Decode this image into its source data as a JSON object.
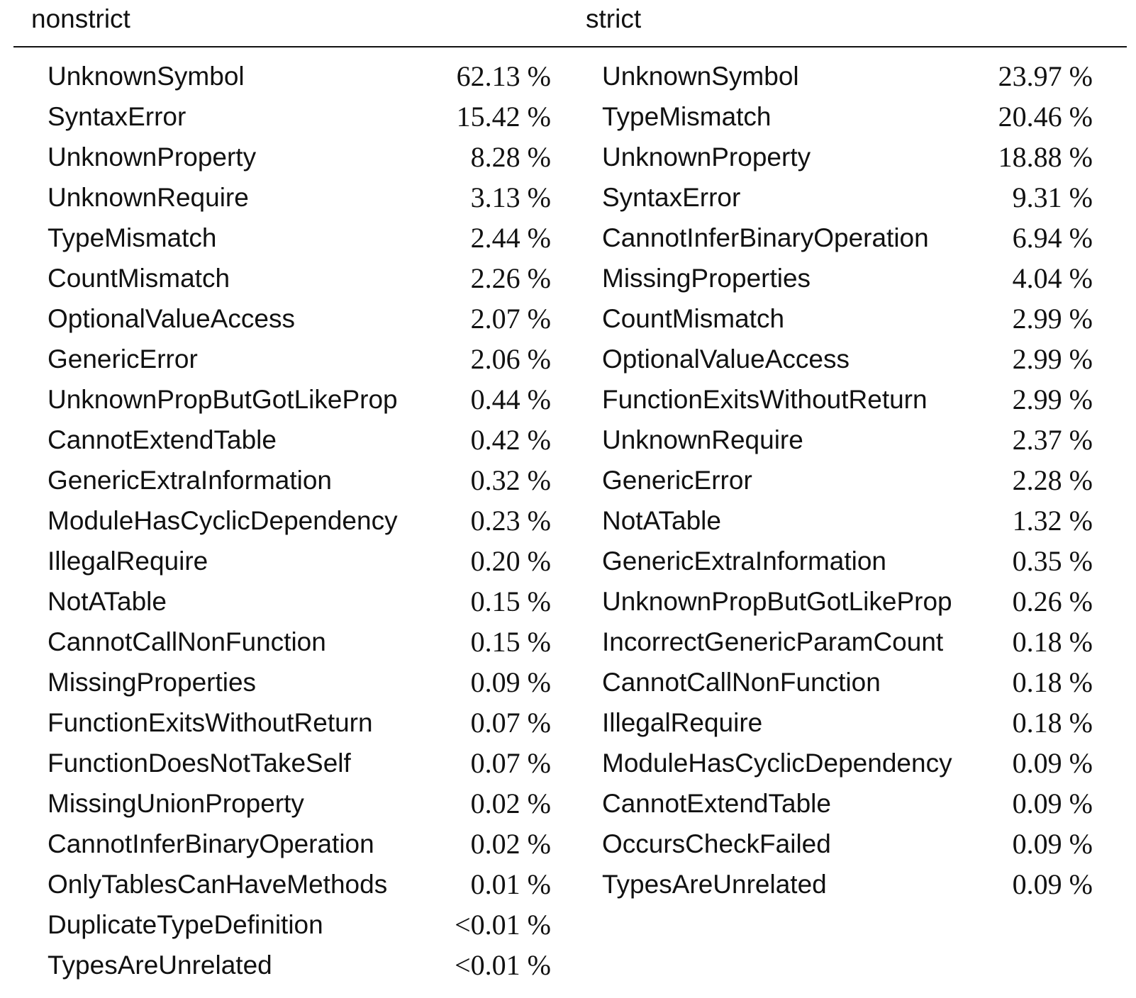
{
  "headers": {
    "left": "nonstrict",
    "right": "strict"
  },
  "nonstrict": [
    {
      "name": "UnknownSymbol",
      "value": "62.13 %"
    },
    {
      "name": "SyntaxError",
      "value": "15.42 %"
    },
    {
      "name": "UnknownProperty",
      "value": "8.28 %"
    },
    {
      "name": "UnknownRequire",
      "value": "3.13 %"
    },
    {
      "name": "TypeMismatch",
      "value": "2.44 %"
    },
    {
      "name": "CountMismatch",
      "value": "2.26 %"
    },
    {
      "name": "OptionalValueAccess",
      "value": "2.07 %"
    },
    {
      "name": "GenericError",
      "value": "2.06 %"
    },
    {
      "name": "UnknownPropButGotLikeProp",
      "value": "0.44 %"
    },
    {
      "name": "CannotExtendTable",
      "value": "0.42 %"
    },
    {
      "name": "GenericExtraInformation",
      "value": "0.32 %"
    },
    {
      "name": "ModuleHasCyclicDependency",
      "value": "0.23 %"
    },
    {
      "name": "IllegalRequire",
      "value": "0.20 %"
    },
    {
      "name": "NotATable",
      "value": "0.15 %"
    },
    {
      "name": "CannotCallNonFunction",
      "value": "0.15 %"
    },
    {
      "name": "MissingProperties",
      "value": "0.09 %"
    },
    {
      "name": "FunctionExitsWithoutReturn",
      "value": "0.07 %"
    },
    {
      "name": "FunctionDoesNotTakeSelf",
      "value": "0.07 %"
    },
    {
      "name": "MissingUnionProperty",
      "value": "0.02 %"
    },
    {
      "name": "CannotInferBinaryOperation",
      "value": "0.02 %"
    },
    {
      "name": "OnlyTablesCanHaveMethods",
      "value": "0.01 %"
    },
    {
      "name": "DuplicateTypeDefinition",
      "value": "<0.01 %"
    },
    {
      "name": "TypesAreUnrelated",
      "value": "<0.01 %"
    }
  ],
  "strict": [
    {
      "name": "UnknownSymbol",
      "value": "23.97 %"
    },
    {
      "name": "TypeMismatch",
      "value": "20.46 %"
    },
    {
      "name": "UnknownProperty",
      "value": "18.88 %"
    },
    {
      "name": "SyntaxError",
      "value": "9.31 %"
    },
    {
      "name": "CannotInferBinaryOperation",
      "value": "6.94 %"
    },
    {
      "name": "MissingProperties",
      "value": "4.04 %"
    },
    {
      "name": "CountMismatch",
      "value": "2.99 %"
    },
    {
      "name": "OptionalValueAccess",
      "value": "2.99 %"
    },
    {
      "name": "FunctionExitsWithoutReturn",
      "value": "2.99 %"
    },
    {
      "name": "UnknownRequire",
      "value": "2.37 %"
    },
    {
      "name": "GenericError",
      "value": "2.28 %"
    },
    {
      "name": "NotATable",
      "value": "1.32 %"
    },
    {
      "name": "GenericExtraInformation",
      "value": "0.35 %"
    },
    {
      "name": "UnknownPropButGotLikeProp",
      "value": "0.26 %"
    },
    {
      "name": "IncorrectGenericParamCount",
      "value": "0.18 %"
    },
    {
      "name": "CannotCallNonFunction",
      "value": "0.18 %"
    },
    {
      "name": "IllegalRequire",
      "value": "0.18 %"
    },
    {
      "name": "ModuleHasCyclicDependency",
      "value": "0.09 %"
    },
    {
      "name": "CannotExtendTable",
      "value": "0.09 %"
    },
    {
      "name": "OccursCheckFailed",
      "value": "0.09 %"
    },
    {
      "name": "TypesAreUnrelated",
      "value": "0.09 %"
    }
  ]
}
